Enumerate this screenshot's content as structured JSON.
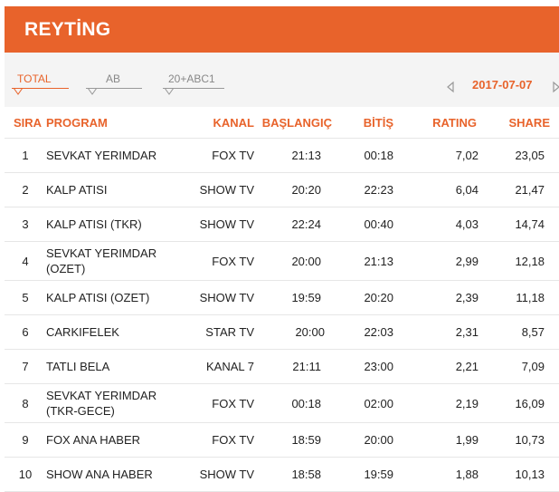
{
  "header": {
    "title": "REYTİNG"
  },
  "tabs": [
    {
      "label": "TOTAL",
      "active": true
    },
    {
      "label": "AB",
      "active": false
    },
    {
      "label": "20+ABC1",
      "active": false
    }
  ],
  "date": {
    "value": "2017-07-07",
    "prev_icon": "triangle-left-icon",
    "next_icon": "triangle-right-icon"
  },
  "colors": {
    "accent": "#e8632b",
    "toolbar_bg": "#f4f4f4",
    "divider": "#e6e6e6"
  },
  "table": {
    "columns": [
      "SIRA",
      "PROGRAM",
      "KANAL",
      "BAŞLANGIÇ",
      "BİTİŞ",
      "RATING",
      "SHARE"
    ],
    "rows": [
      {
        "sira": "1",
        "program": "SEVKAT YERIMDAR",
        "kanal": "FOX TV",
        "baslangic": "21:13",
        "bitis": "00:18",
        "rating": "7,02",
        "share": "23,05"
      },
      {
        "sira": "2",
        "program": "KALP ATISI",
        "kanal": "SHOW TV",
        "baslangic": "20:20",
        "bitis": "22:23",
        "rating": "6,04",
        "share": "21,47"
      },
      {
        "sira": "3",
        "program": "KALP ATISI (TKR)",
        "kanal": "SHOW TV",
        "baslangic": "22:24",
        "bitis": "00:40",
        "rating": "4,03",
        "share": "14,74"
      },
      {
        "sira": "4",
        "program": "SEVKAT YERIMDAR (OZET)",
        "kanal": "FOX TV",
        "baslangic": "20:00",
        "bitis": "21:13",
        "rating": "2,99",
        "share": "12,18"
      },
      {
        "sira": "5",
        "program": "KALP ATISI (OZET)",
        "kanal": "SHOW TV",
        "baslangic": "19:59",
        "bitis": "20:20",
        "rating": "2,39",
        "share": "11,18"
      },
      {
        "sira": "6",
        "program": "CARKIFELEK",
        "kanal": "STAR TV",
        "baslangic": "20:00",
        "bitis": "22:03",
        "rating": "2,31",
        "share": "8,57"
      },
      {
        "sira": "7",
        "program": "TATLI BELA",
        "kanal": "KANAL 7",
        "baslangic": "21:11",
        "bitis": "23:00",
        "rating": "2,21",
        "share": "7,09"
      },
      {
        "sira": "8",
        "program": "SEVKAT YERIMDAR (TKR-GECE)",
        "kanal": "FOX TV",
        "baslangic": "00:18",
        "bitis": "02:00",
        "rating": "2,19",
        "share": "16,09"
      },
      {
        "sira": "9",
        "program": "FOX ANA HABER",
        "kanal": "FOX TV",
        "baslangic": "18:59",
        "bitis": "20:00",
        "rating": "1,99",
        "share": "10,73"
      },
      {
        "sira": "10",
        "program": "SHOW ANA HABER",
        "kanal": "SHOW TV",
        "baslangic": "18:58",
        "bitis": "19:59",
        "rating": "1,88",
        "share": "10,13"
      }
    ]
  }
}
